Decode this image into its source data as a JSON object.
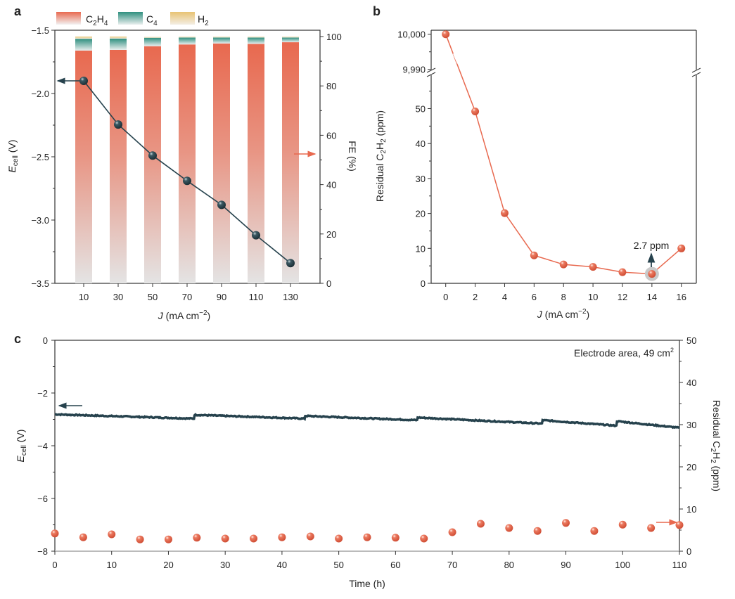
{
  "colors": {
    "c2h4": "#e8694f",
    "c4": "#2f8f7f",
    "h2": "#e8c373",
    "ecell": "#26424d",
    "residual": "#e8694f",
    "axis": "#333333"
  },
  "chart_data": [
    {
      "panel": "a",
      "type": "bar",
      "legend": [
        {
          "main": "C",
          "sub": "2",
          "main2": "H",
          "sub2": "4"
        },
        {
          "main": "C",
          "sub": "4",
          "main2": "",
          "sub2": ""
        },
        {
          "main": "H",
          "sub": "2",
          "main2": "",
          "sub2": ""
        }
      ],
      "legend_placement": "top",
      "categories": [
        10,
        30,
        50,
        70,
        90,
        110,
        130
      ],
      "series": [
        {
          "name": "C2H4",
          "axis": "right",
          "values": [
            94.3,
            94.6,
            96.1,
            96.8,
            97.2,
            97.0,
            97.7
          ]
        },
        {
          "name": "C4",
          "axis": "right",
          "values": [
            4.8,
            4.6,
            3.4,
            2.8,
            2.4,
            2.6,
            1.9
          ]
        },
        {
          "name": "H2",
          "axis": "right",
          "values": [
            0.9,
            0.8,
            0.3,
            0.3,
            0.3,
            0.3,
            0.3
          ]
        },
        {
          "axis": "left",
          "type": "line",
          "values": [
            -1.9,
            -2.245,
            -2.49,
            -2.69,
            -2.88,
            -3.12,
            -3.34
          ]
        }
      ],
      "xlabel": {
        "main": "J",
        "rest": " (mA cm",
        "sup": "−2",
        "end": ")"
      },
      "ylabel_left": {
        "main": "E",
        "sub": "cell",
        "rest": " (V)"
      },
      "ylabel_right": "FE (%)",
      "ylim_left": [
        -3.5,
        -1.5
      ],
      "ylim_right": [
        0,
        103
      ],
      "yticks_left": [
        "−1.5",
        "−2.0",
        "−2.5",
        "−3.0",
        "−3.5"
      ],
      "yticks_left_values": [
        -1.5,
        -2.0,
        -2.5,
        -3.0,
        -3.5
      ],
      "yticks_right": [
        "0",
        "20",
        "40",
        "60",
        "80",
        "100"
      ],
      "xticks": [
        "10",
        "30",
        "50",
        "70",
        "90",
        "110",
        "130"
      ]
    },
    {
      "panel": "b",
      "type": "line",
      "x": [
        0,
        2,
        4,
        6,
        8,
        10,
        12,
        14,
        16
      ],
      "y": [
        10000,
        49.2,
        20.1,
        8.0,
        5.4,
        4.7,
        3.2,
        2.7,
        10.0
      ],
      "xlabel": {
        "main": "J",
        "rest": " (mA cm",
        "sup": "−2",
        "end": ")"
      },
      "ylabel": {
        "main": "Residual C",
        "sub": "2",
        "main2": "H",
        "sub2": "2",
        "rest": " (ppm)"
      },
      "ylim_lower": [
        0,
        58
      ],
      "ylim_upper": [
        9990,
        10000
      ],
      "axis_break": true,
      "yticks": [
        "0",
        "10",
        "20",
        "30",
        "40",
        "50",
        "9,990",
        "10,000"
      ],
      "xticks": [
        "0",
        "2",
        "4",
        "6",
        "8",
        "10",
        "12",
        "14",
        "16"
      ],
      "annotation": {
        "text": "2.7 ppm",
        "x": 14,
        "y": 2.7
      }
    },
    {
      "panel": "c",
      "type": "line+scatter",
      "annotation": {
        "text": "Electrode area, 49 cm",
        "sup": "2"
      },
      "ecell_segments": [
        {
          "start": [
            0,
            -2.81
          ],
          "end": [
            24.5,
            -2.97
          ]
        },
        {
          "start": [
            24.6,
            -2.83
          ],
          "end": [
            44,
            -2.97
          ]
        },
        {
          "start": [
            44.1,
            -2.87
          ],
          "end": [
            63.8,
            -3.03
          ]
        },
        {
          "start": [
            63.9,
            -2.93
          ],
          "end": [
            85.8,
            -3.16
          ]
        },
        {
          "start": [
            85.9,
            -3.03
          ],
          "end": [
            98.9,
            -3.24
          ]
        },
        {
          "start": [
            99,
            -3.07
          ],
          "end": [
            110,
            -3.32
          ]
        }
      ],
      "residual_x": [
        0,
        5,
        10,
        15,
        20,
        25,
        30,
        35,
        40,
        45,
        50,
        55,
        60,
        65,
        70,
        75,
        80,
        85,
        90,
        95,
        100,
        105,
        110
      ],
      "residual_y": [
        4.2,
        3.3,
        4.0,
        2.8,
        2.8,
        3.2,
        3.0,
        3.0,
        3.3,
        3.5,
        3.0,
        3.3,
        3.2,
        3.0,
        4.5,
        6.5,
        5.5,
        4.8,
        6.7,
        4.8,
        6.3,
        5.5,
        6.2
      ],
      "xlabel": "Time (h)",
      "ylabel_left": {
        "main": "E",
        "sub": "cell",
        "rest": " (V)"
      },
      "ylabel_right": {
        "main": "Residual C",
        "sub": "2",
        "main2": "H",
        "sub2": "2",
        "rest": " (ppm)"
      },
      "xlim": [
        0,
        110
      ],
      "ylim_left": [
        -8,
        0
      ],
      "ylim_right": [
        0,
        50
      ],
      "xticks": [
        "0",
        "10",
        "20",
        "30",
        "40",
        "50",
        "60",
        "70",
        "80",
        "90",
        "100",
        "110"
      ],
      "yticks_left": [
        "0",
        "−2",
        "−4",
        "−6",
        "−8"
      ],
      "yticks_right": [
        "0",
        "10",
        "20",
        "30",
        "40",
        "50"
      ]
    }
  ],
  "panel_labels": [
    "a",
    "b",
    "c"
  ]
}
